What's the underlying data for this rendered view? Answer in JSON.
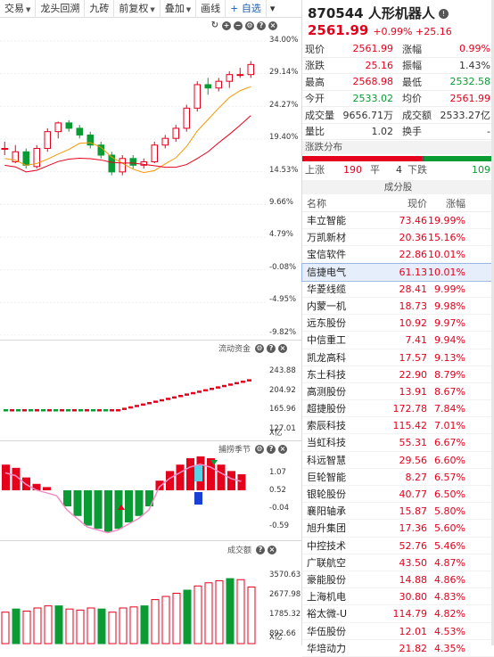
{
  "toolbar": {
    "items": [
      {
        "label": "交易",
        "caret": true
      },
      {
        "label": "龙头回溯",
        "caret": false
      },
      {
        "label": "九砖",
        "caret": false
      },
      {
        "label": "前复权",
        "caret": true
      },
      {
        "label": "叠加",
        "caret": true
      },
      {
        "label": "画线",
        "caret": false
      },
      {
        "label": "+ 自选",
        "caret": false
      },
      {
        "label": "▾",
        "caret": false
      }
    ]
  },
  "kline": {
    "axis": [
      "34.00%",
      "29.14%",
      "24.27%",
      "19.40%",
      "14.53%",
      "9.66%",
      "4.79%",
      "-0.08%",
      "-4.95%",
      "-9.82%"
    ],
    "candles": [
      {
        "o": 18.0,
        "c": 18.0,
        "h": 19.0,
        "l": 17.0
      },
      {
        "o": 16.0,
        "c": 17.5,
        "h": 18.5,
        "l": 15.8
      },
      {
        "o": 17.5,
        "c": 15.5,
        "h": 18.0,
        "l": 15.0
      },
      {
        "o": 15.3,
        "c": 18.0,
        "h": 18.5,
        "l": 15.0
      },
      {
        "o": 18.0,
        "c": 20.5,
        "h": 21.0,
        "l": 17.5
      },
      {
        "o": 20.5,
        "c": 21.8,
        "h": 22.0,
        "l": 19.5
      },
      {
        "o": 21.8,
        "c": 21.0,
        "h": 22.2,
        "l": 20.5
      },
      {
        "o": 21.0,
        "c": 20.0,
        "h": 21.5,
        "l": 19.5
      },
      {
        "o": 20.0,
        "c": 18.5,
        "h": 20.5,
        "l": 18.0
      },
      {
        "o": 18.5,
        "c": 17.0,
        "h": 19.0,
        "l": 16.5
      },
      {
        "o": 17.0,
        "c": 14.5,
        "h": 17.5,
        "l": 14.0
      },
      {
        "o": 14.5,
        "c": 16.5,
        "h": 17.0,
        "l": 14.0
      },
      {
        "o": 16.5,
        "c": 15.5,
        "h": 17.0,
        "l": 15.0
      },
      {
        "o": 15.5,
        "c": 16.0,
        "h": 16.5,
        "l": 15.0
      },
      {
        "o": 16.0,
        "c": 18.5,
        "h": 19.0,
        "l": 15.8
      },
      {
        "o": 18.5,
        "c": 19.5,
        "h": 20.0,
        "l": 18.0
      },
      {
        "o": 19.5,
        "c": 21.0,
        "h": 21.5,
        "l": 19.0
      },
      {
        "o": 21.0,
        "c": 24.0,
        "h": 24.5,
        "l": 20.5
      },
      {
        "o": 24.0,
        "c": 27.5,
        "h": 28.0,
        "l": 23.5
      },
      {
        "o": 27.5,
        "c": 27.0,
        "h": 28.5,
        "l": 26.0
      },
      {
        "o": 27.0,
        "c": 28.0,
        "h": 28.5,
        "l": 26.5
      },
      {
        "o": 28.0,
        "c": 29.0,
        "h": 29.5,
        "l": 27.0
      },
      {
        "o": 29.0,
        "c": 29.0,
        "h": 30.0,
        "l": 28.5
      },
      {
        "o": 29.0,
        "c": 30.5,
        "h": 31.0,
        "l": 28.5
      }
    ]
  },
  "flow": {
    "title": "流动资金",
    "axis": [
      "243.88",
      "204.92",
      "165.96",
      "127.01"
    ],
    "unit": "X亿"
  },
  "season": {
    "title": "捕捞季节",
    "axis": [
      "1.07",
      "0.52",
      "-0.04",
      "-0.59"
    ]
  },
  "vol": {
    "title": "成交额",
    "axis": [
      "3570.63",
      "2677.98",
      "1785.32",
      "892.66"
    ],
    "unit": "X亿",
    "values": [
      1500,
      1650,
      1550,
      1700,
      1800,
      1800,
      1650,
      1600,
      1700,
      1650,
      1500,
      1700,
      1750,
      1800,
      2100,
      2250,
      2400,
      2550,
      2750,
      2900,
      3000,
      3100,
      3050,
      2700
    ]
  },
  "quote": {
    "code": "870544 人形机器人",
    "price": "2561.99",
    "change": "+0.99%  +25.16",
    "rows": [
      {
        "k": "现价",
        "v": "2561.99",
        "vc": "red",
        "k2": "涨幅",
        "v2": "0.99%",
        "v2c": "red"
      },
      {
        "k": "涨跌",
        "v": "25.16",
        "vc": "red",
        "k2": "振幅",
        "v2": "1.43%",
        "v2c": ""
      },
      {
        "k": "最高",
        "v": "2568.98",
        "vc": "red",
        "k2": "最低",
        "v2": "2532.58",
        "v2c": "grn"
      },
      {
        "k": "今开",
        "v": "2533.02",
        "vc": "grn",
        "k2": "均价",
        "v2": "2561.99",
        "v2c": "red"
      },
      {
        "k": "成交量",
        "v": "9656.71万",
        "vc": "",
        "k2": "成交额",
        "v2": "2533.27亿",
        "v2c": ""
      },
      {
        "k": "量比",
        "v": "1.02",
        "vc": "",
        "k2": "换手",
        "v2": "-",
        "v2c": ""
      }
    ]
  },
  "dist": {
    "title": "涨跌分布",
    "up_label": "上涨",
    "up": "190",
    "flat_label": "平",
    "flat": "4",
    "down_label": "下跌",
    "down": "109"
  },
  "components": {
    "title": "成分股",
    "headers": [
      "名称",
      "现价",
      "涨幅"
    ],
    "rows": [
      {
        "name": "丰立智能",
        "price": "73.46",
        "pct": "19.99%"
      },
      {
        "name": "万凯新材",
        "price": "20.36",
        "pct": "15.16%"
      },
      {
        "name": "宝信软件",
        "price": "22.86",
        "pct": "10.01%"
      },
      {
        "name": "信捷电气",
        "price": "61.13",
        "pct": "10.01%"
      },
      {
        "name": "华菱线缆",
        "price": "28.41",
        "pct": "9.99%"
      },
      {
        "name": "内蒙一机",
        "price": "18.73",
        "pct": "9.98%"
      },
      {
        "name": "远东股份",
        "price": "10.92",
        "pct": "9.97%"
      },
      {
        "name": "中信重工",
        "price": "7.41",
        "pct": "9.94%"
      },
      {
        "name": "凯龙高科",
        "price": "17.57",
        "pct": "9.13%"
      },
      {
        "name": "东土科技",
        "price": "22.90",
        "pct": "8.79%"
      },
      {
        "name": "高测股份",
        "price": "13.91",
        "pct": "8.67%"
      },
      {
        "name": "超捷股份",
        "price": "172.78",
        "pct": "7.84%"
      },
      {
        "name": "索辰科技",
        "price": "115.42",
        "pct": "7.01%"
      },
      {
        "name": "当虹科技",
        "price": "55.31",
        "pct": "6.67%"
      },
      {
        "name": "科远智慧",
        "price": "29.56",
        "pct": "6.60%"
      },
      {
        "name": "巨轮智能",
        "price": "8.27",
        "pct": "6.57%"
      },
      {
        "name": "银轮股份",
        "price": "40.77",
        "pct": "6.50%"
      },
      {
        "name": "襄阳轴承",
        "price": "15.87",
        "pct": "5.80%"
      },
      {
        "name": "旭升集团",
        "price": "17.36",
        "pct": "5.60%"
      },
      {
        "name": "中控技术",
        "price": "52.76",
        "pct": "5.46%"
      },
      {
        "name": "广联航空",
        "price": "43.50",
        "pct": "4.87%"
      },
      {
        "name": "豪能股份",
        "price": "14.88",
        "pct": "4.86%"
      },
      {
        "name": "上海机电",
        "price": "30.80",
        "pct": "4.83%"
      },
      {
        "name": "裕太微-U",
        "price": "114.79",
        "pct": "4.82%"
      },
      {
        "name": "华伍股份",
        "price": "12.01",
        "pct": "4.53%"
      },
      {
        "name": "华培动力",
        "price": "21.82",
        "pct": "4.35%"
      }
    ]
  }
}
